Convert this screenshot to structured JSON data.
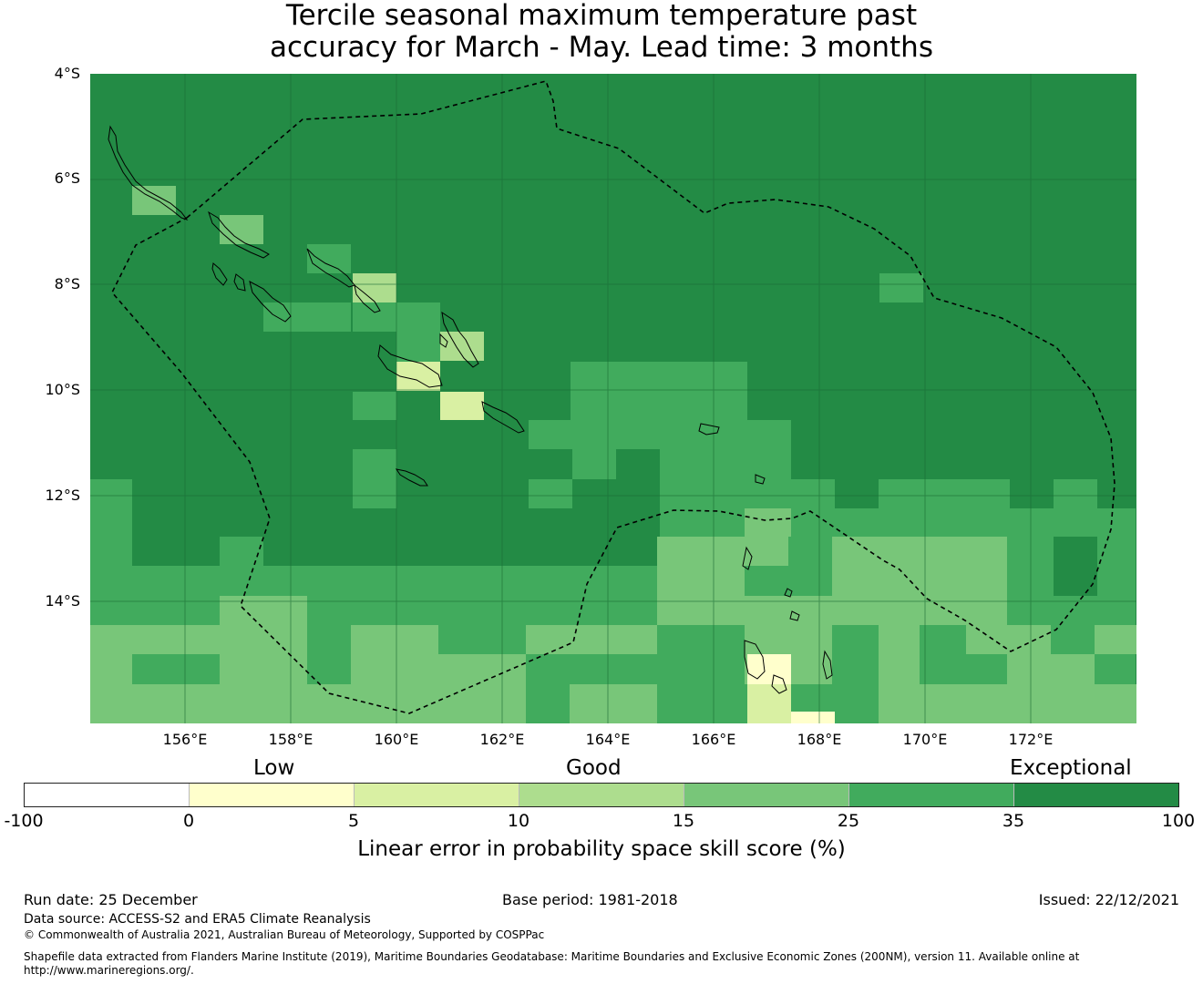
{
  "title": {
    "line1": "Tercile seasonal maximum temperature past",
    "line2": "accuracy for March - May. Lead time: 3 months"
  },
  "map": {
    "lat_labels": [
      "4°S",
      "6°S",
      "8°S",
      "10°S",
      "12°S",
      "14°S"
    ],
    "lon_labels": [
      "156°E",
      "158°E",
      "160°E",
      "162°E",
      "164°E",
      "166°E",
      "168°E",
      "170°E",
      "172°E"
    ],
    "base_color": "#238b45",
    "region": "Solomon Islands EEZ"
  },
  "colorbar": {
    "category_labels": {
      "low": "Low",
      "good": "Good",
      "exceptional": "Exceptional"
    },
    "ticks": [
      "-100",
      "0",
      "5",
      "10",
      "15",
      "25",
      "35",
      "100"
    ],
    "colors": [
      "#ffffff",
      "#ffffcc",
      "#d9f0a3",
      "#addd8e",
      "#78c679",
      "#41ab5d",
      "#238b45"
    ],
    "title": "Linear error in probability space skill score (%)"
  },
  "footer": {
    "run_date": "Run date: 25 December",
    "base_period": "Base period: 1981-2018",
    "issued": "Issued: 22/12/2021",
    "data_source": "Data source: ACCESS-S2 and ERA5 Climate Reanalysis",
    "copyright": "© Commonwealth of Australia 2021, Australian Bureau of Meteorology, Supported by COSPPac",
    "shapefile_line1": "Shapefile data extracted from Flanders Marine Institute (2019), Maritime Boundaries Geodatabase: Maritime Boundaries and Exclusive Economic Zones (200NM), version 11. Available online at",
    "shapefile_line2": "http://www.marineregions.org/."
  }
}
